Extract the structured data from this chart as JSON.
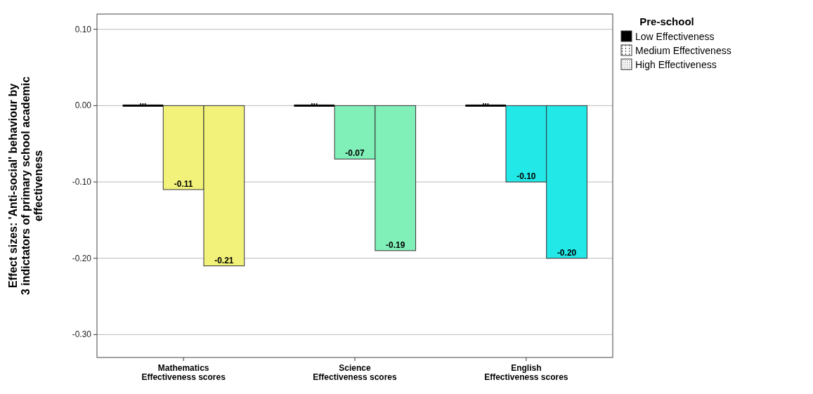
{
  "chart_data": {
    "type": "bar",
    "ylabel": "Effect sizes: 'Anti-social' behaviour by 3 indictators of primary school academic effectiveness",
    "legend_title": "Pre-school",
    "categories": [
      "Mathematics\nEffectiveness scores",
      "Science\nEffectiveness scores",
      "English\nEffectiveness scores"
    ],
    "series": [
      {
        "name": "Low Effectiveness",
        "colors": [
          "#000000",
          "#000000",
          "#000000"
        ],
        "values": [
          0,
          0,
          0
        ],
        "value_labels": [
          "...",
          "...",
          "..."
        ]
      },
      {
        "name": "Medium Effectiveness",
        "colors": [
          "#f2f27a",
          "#80f0b8",
          "#22e8e8"
        ],
        "values": [
          -0.11,
          -0.07,
          -0.1
        ],
        "value_labels": [
          "-0.11",
          "-0.07",
          "-0.10"
        ]
      },
      {
        "name": "High Effectiveness",
        "colors": [
          "#f2f27a",
          "#80f0b8",
          "#22e8e8"
        ],
        "values": [
          -0.21,
          -0.19,
          -0.2
        ],
        "value_labels": [
          "-0.21",
          "-0.19",
          "-0.20"
        ]
      }
    ],
    "ylim": [
      -0.33,
      0.12
    ],
    "yticks": [
      {
        "value": 0.1,
        "label": "0.10"
      },
      {
        "value": 0,
        "label": "0.00"
      },
      {
        "value": -0.1,
        "label": "-0.10"
      },
      {
        "value": -0.2,
        "label": "-0.20"
      },
      {
        "value": -0.3,
        "label": "-0.30"
      }
    ],
    "grid": "y",
    "legend": "top right"
  }
}
